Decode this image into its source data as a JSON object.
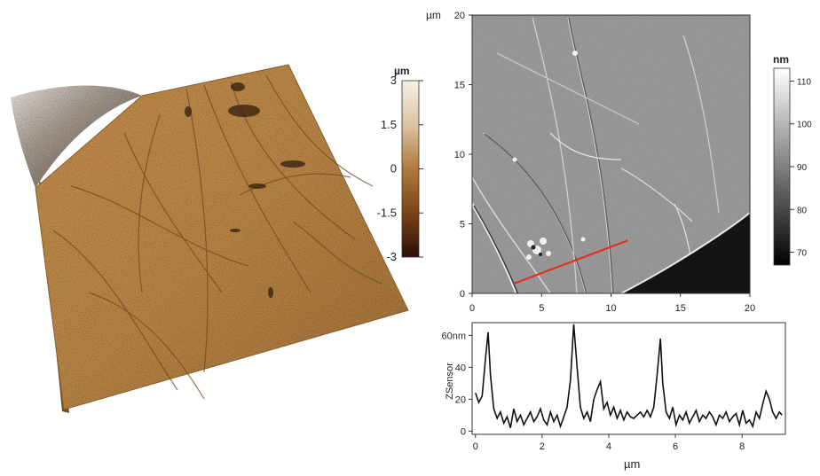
{
  "chart_data": [
    {
      "type": "heatmap",
      "view": "3d-perspective",
      "colorbar": {
        "unit": "µm",
        "ticks": [
          "3",
          "1.5",
          "0",
          "-1.5",
          "-3"
        ],
        "tick_values": [
          3,
          1.5,
          0,
          -1.5,
          -3
        ],
        "range": [
          -3,
          3
        ],
        "colors": [
          "#2a0e06",
          "#7a4418",
          "#b07a3c",
          "#dcc3a2",
          "#f6f1ea"
        ]
      }
    },
    {
      "type": "heatmap",
      "xlim": [
        0,
        20
      ],
      "ylim": [
        0,
        20
      ],
      "y_unit": "µm",
      "x_ticks": [
        "0",
        "5",
        "10",
        "15",
        "20"
      ],
      "y_ticks": [
        "0",
        "5",
        "10",
        "15",
        "20"
      ],
      "x_tick_values": [
        0,
        5,
        10,
        15,
        20
      ],
      "y_tick_values": [
        0,
        5,
        10,
        15,
        20
      ],
      "line_profile": {
        "start": [
          3.0,
          0.7
        ],
        "end": [
          11.2,
          3.8
        ],
        "color": "#e03020"
      },
      "colorbar": {
        "unit": "nm",
        "ticks": [
          "110",
          "100",
          "90",
          "80",
          "70"
        ],
        "tick_values": [
          110,
          100,
          90,
          80,
          70
        ],
        "range": [
          67,
          113
        ],
        "colors": [
          "#000000",
          "#ffffff"
        ]
      }
    },
    {
      "type": "line",
      "xlabel": "µm",
      "ylabel": "ZSensor",
      "xlim": [
        -0.1,
        9.3
      ],
      "ylim": [
        -2,
        68
      ],
      "x_ticks": [
        "0",
        "2",
        "4",
        "6",
        "8"
      ],
      "x_tick_values": [
        0,
        2,
        4,
        6,
        8
      ],
      "y_ticks": [
        "60nm",
        "40",
        "20",
        "0"
      ],
      "y_tick_values": [
        60,
        40,
        20,
        0
      ],
      "series": [
        {
          "x": [
            0.0,
            0.1,
            0.2,
            0.3,
            0.38,
            0.45,
            0.55,
            0.65,
            0.75,
            0.85,
            0.95,
            1.05,
            1.15,
            1.25,
            1.35,
            1.45,
            1.55,
            1.65,
            1.75,
            1.85,
            1.95,
            2.05,
            2.15,
            2.25,
            2.35,
            2.45,
            2.55,
            2.65,
            2.75,
            2.85,
            2.95,
            3.05,
            3.15,
            3.25,
            3.35,
            3.45,
            3.55,
            3.65,
            3.75,
            3.85,
            3.95,
            4.05,
            4.15,
            4.25,
            4.35,
            4.45,
            4.55,
            4.65,
            4.75,
            4.85,
            4.95,
            5.05,
            5.15,
            5.25,
            5.35,
            5.45,
            5.55,
            5.62,
            5.72,
            5.82,
            5.92,
            6.02,
            6.12,
            6.22,
            6.32,
            6.42,
            6.52,
            6.62,
            6.72,
            6.82,
            6.92,
            7.02,
            7.12,
            7.22,
            7.32,
            7.42,
            7.52,
            7.62,
            7.72,
            7.82,
            7.92,
            8.02,
            8.12,
            8.22,
            8.32,
            8.42,
            8.52,
            8.62,
            8.72,
            8.82,
            8.92,
            9.02,
            9.12,
            9.2
          ],
          "values": [
            24,
            18,
            22,
            45,
            62,
            35,
            14,
            8,
            12,
            5,
            9,
            2,
            14,
            6,
            10,
            4,
            8,
            12,
            6,
            9,
            14,
            7,
            4,
            12,
            6,
            10,
            3,
            9,
            15,
            32,
            67,
            40,
            15,
            8,
            12,
            6,
            20,
            26,
            31,
            14,
            18,
            10,
            15,
            8,
            13,
            7,
            12,
            9,
            8,
            10,
            12,
            9,
            13,
            9,
            15,
            35,
            58,
            30,
            12,
            8,
            15,
            4,
            10,
            7,
            12,
            5,
            9,
            13,
            6,
            10,
            8,
            12,
            9,
            4,
            10,
            8,
            12,
            6,
            9,
            11,
            4,
            13,
            5,
            7,
            3,
            12,
            8,
            17,
            25,
            20,
            12,
            8,
            12,
            10
          ]
        }
      ]
    }
  ]
}
